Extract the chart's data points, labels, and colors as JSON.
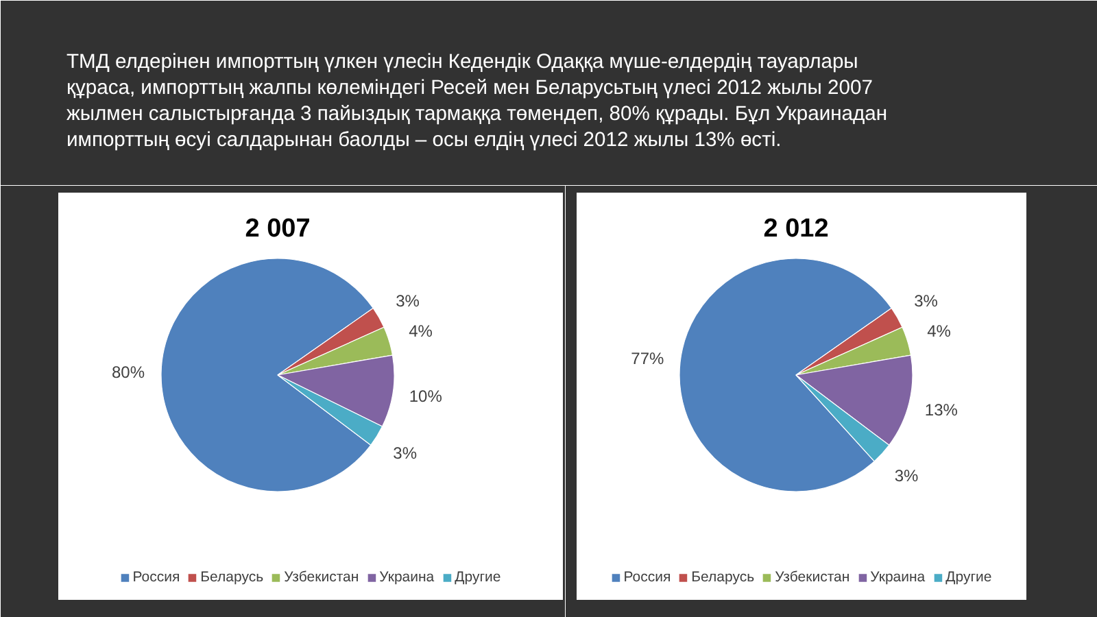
{
  "chart_data": [
    {
      "type": "other",
      "annotations": [
        "ТМД елдерінен импорттың үлкен үлесін Кедендік Одаққа мүше-елдердің тауарлары құраса, импорттың жалпы көлеміндегі Ресей мен Беларусьтың үлесі 2012 жылы 2007 жылмен салыстырғанда 3 пайыздық тармаққа төмендеп, 80% құрады. Бұл Украинадан импорттың өсуі салдарынан баолды – осы елдің үлесі 2012 жылы 13% өсті."
      ]
    },
    {
      "type": "pie",
      "title": "2 007",
      "categories": [
        "Россия",
        "Беларусь",
        "Узбекистан",
        "Украина",
        "Другие"
      ],
      "values": [
        80,
        3,
        4,
        10,
        3
      ],
      "colors": [
        "#4f81bd",
        "#c0504d",
        "#9bbb59",
        "#8064a2",
        "#4bacc6"
      ],
      "value_labels": [
        "80%",
        "3%",
        "4%",
        "10%",
        "3%"
      ],
      "legend": "bottom"
    },
    {
      "type": "pie",
      "title": "2 012",
      "categories": [
        "Россия",
        "Беларусь",
        "Узбекистан",
        "Украина",
        "Другие"
      ],
      "values": [
        77,
        3,
        4,
        13,
        3
      ],
      "colors": [
        "#4f81bd",
        "#c0504d",
        "#9bbb59",
        "#8064a2",
        "#4bacc6"
      ],
      "value_labels": [
        "77%",
        "3%",
        "4%",
        "13%",
        "3%"
      ],
      "legend": "bottom"
    }
  ]
}
